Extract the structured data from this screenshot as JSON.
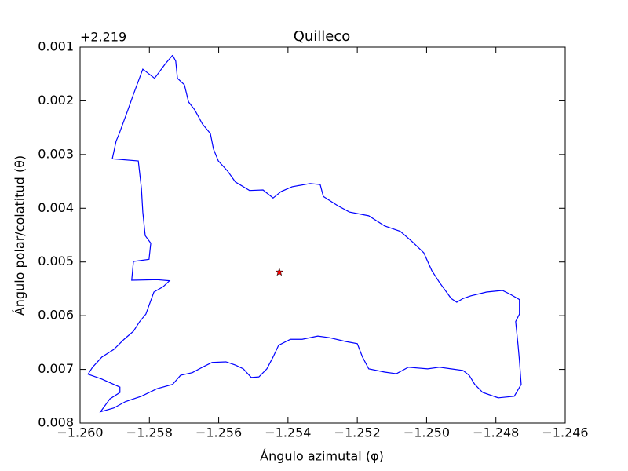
{
  "chart_data": {
    "type": "line",
    "title": "Quilleco",
    "xlabel": "Ángulo azimutal (φ)",
    "ylabel": "Ángulo polar/colatitud (θ)",
    "y_offset": "+2.219",
    "xlim": [
      -1.26,
      -1.246
    ],
    "xticks": [
      {
        "value": -1.26,
        "label": "−1.260"
      },
      {
        "value": -1.258,
        "label": "−1.258"
      },
      {
        "value": -1.256,
        "label": "−1.256"
      },
      {
        "value": -1.254,
        "label": "−1.254"
      },
      {
        "value": -1.252,
        "label": "−1.252"
      },
      {
        "value": -1.25,
        "label": "−1.250"
      },
      {
        "value": -1.248,
        "label": "−1.248"
      },
      {
        "value": -1.246,
        "label": "−1.246"
      }
    ],
    "ylim": [
      0.008,
      0.001
    ],
    "yticks": [
      0.001,
      0.002,
      0.003,
      0.004,
      0.005,
      0.006,
      0.007,
      0.008
    ],
    "series": [
      {
        "color": "#0000ff",
        "x": [
          -1.25733,
          -1.25724,
          -1.25719,
          -1.25699,
          -1.25687,
          -1.25669,
          -1.25647,
          -1.25624,
          -1.25615,
          -1.25601,
          -1.25574,
          -1.25552,
          -1.25511,
          -1.25472,
          -1.25443,
          -1.2542,
          -1.25388,
          -1.25336,
          -1.25307,
          -1.25298,
          -1.25257,
          -1.25223,
          -1.25167,
          -1.25121,
          -1.25076,
          -1.25042,
          -1.25008,
          -1.24985,
          -1.24963,
          -1.24929,
          -1.24913,
          -1.24895,
          -1.24872,
          -1.24827,
          -1.24781,
          -1.24759,
          -1.24732,
          -1.24732,
          -1.24743,
          -1.24736,
          -1.24732,
          -1.24727,
          -1.24747,
          -1.24793,
          -1.24838,
          -1.24861,
          -1.24877,
          -1.24895,
          -1.24929,
          -1.24963,
          -1.24997,
          -1.25053,
          -1.25087,
          -1.25121,
          -1.25167,
          -1.25185,
          -1.252,
          -1.25234,
          -1.2528,
          -1.25314,
          -1.25359,
          -1.25393,
          -1.25427,
          -1.25443,
          -1.25461,
          -1.25484,
          -1.25506,
          -1.25529,
          -1.25552,
          -1.25579,
          -1.25619,
          -1.25647,
          -1.25676,
          -1.2571,
          -1.25733,
          -1.25778,
          -1.25823,
          -1.25869,
          -1.25903,
          -1.25941,
          -1.25914,
          -1.25885,
          -1.25885,
          -1.25937,
          -1.25977,
          -1.25964,
          -1.25937,
          -1.25903,
          -1.25873,
          -1.25846,
          -1.25828,
          -1.2581,
          -1.25796,
          -1.25787,
          -1.2576,
          -1.25742,
          -1.25778,
          -1.25851,
          -1.25846,
          -1.25801,
          -1.25796,
          -1.25812,
          -1.25819,
          -1.25823,
          -1.25832,
          -1.25907,
          -1.25896,
          -1.25887,
          -1.25862,
          -1.25846,
          -1.25819,
          -1.25785,
          -1.25755,
          -1.25733
        ],
        "values": [
          0.00115,
          0.00126,
          0.00158,
          0.0017,
          0.00202,
          0.00217,
          0.00243,
          0.00261,
          0.0029,
          0.00312,
          0.00331,
          0.00351,
          0.00367,
          0.00366,
          0.00381,
          0.00369,
          0.0036,
          0.00354,
          0.00356,
          0.00378,
          0.00395,
          0.00407,
          0.00414,
          0.00433,
          0.00443,
          0.00462,
          0.00483,
          0.00516,
          0.00538,
          0.00568,
          0.00575,
          0.00568,
          0.00563,
          0.00556,
          0.00553,
          0.0056,
          0.0057,
          0.00597,
          0.00611,
          0.00655,
          0.00684,
          0.00728,
          0.0075,
          0.00753,
          0.00743,
          0.00728,
          0.00711,
          0.00702,
          0.00699,
          0.00696,
          0.00699,
          0.00696,
          0.00708,
          0.00705,
          0.00699,
          0.00677,
          0.00652,
          0.00648,
          0.00641,
          0.00638,
          0.00644,
          0.00644,
          0.00655,
          0.00677,
          0.00699,
          0.00714,
          0.00715,
          0.00699,
          0.00692,
          0.00686,
          0.00687,
          0.00696,
          0.00706,
          0.00711,
          0.00728,
          0.00736,
          0.0075,
          0.0076,
          0.00772,
          0.00779,
          0.00755,
          0.00743,
          0.00733,
          0.00718,
          0.00709,
          0.00696,
          0.00677,
          0.00663,
          0.00644,
          0.00629,
          0.00611,
          0.00597,
          0.00572,
          0.00556,
          0.00546,
          0.00535,
          0.00533,
          0.00534,
          0.00499,
          0.00495,
          0.00465,
          0.00451,
          0.00407,
          0.00363,
          0.00312,
          0.00308,
          0.00275,
          0.00261,
          0.00217,
          0.00188,
          0.00141,
          0.00158,
          0.00132,
          0.00115
        ]
      },
      {
        "color": "#ff0000",
        "marker": "star",
        "x": [
          -1.25425
        ],
        "values": [
          0.00519
        ]
      }
    ]
  }
}
